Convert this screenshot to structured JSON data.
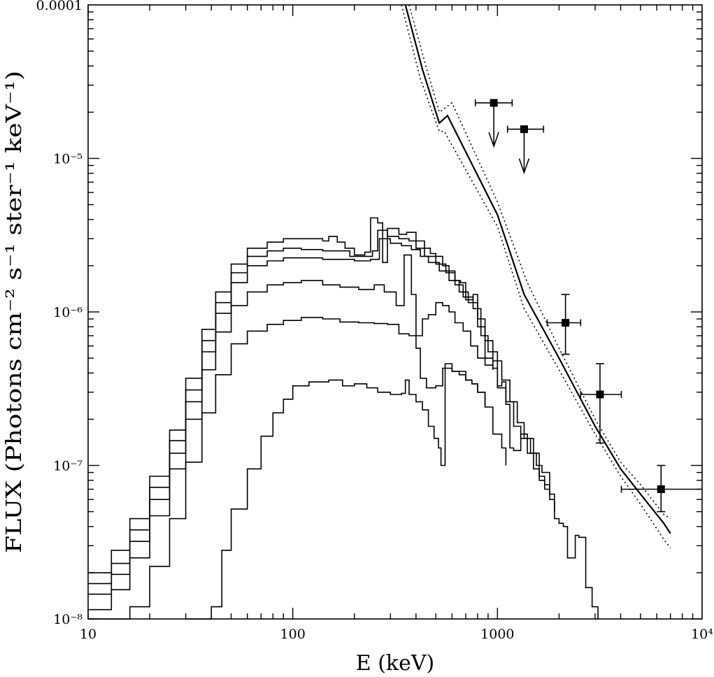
{
  "chart_data": {
    "type": "line",
    "title": "",
    "xlabel": "E (keV)",
    "ylabel": "FLUX (Photons cm⁻² s⁻¹ ster⁻¹ keV⁻¹)",
    "x_scale": "log",
    "y_scale": "log",
    "xlim": [
      10,
      10000
    ],
    "ylim": [
      1e-08,
      0.0001
    ],
    "grid": false,
    "legend": "none",
    "x_ticks": [
      {
        "value": 10,
        "label": "10"
      },
      {
        "value": 100,
        "label": "100"
      },
      {
        "value": 1000,
        "label": "1000"
      },
      {
        "value": 10000,
        "label": "10⁴"
      }
    ],
    "y_ticks": [
      {
        "value": 1e-08,
        "label": "10⁻⁸"
      },
      {
        "value": 1e-07,
        "label": "10⁻⁷"
      },
      {
        "value": 1e-06,
        "label": "10⁻⁶"
      },
      {
        "value": 1e-05,
        "label": "10⁻⁵"
      },
      {
        "value": 0.0001,
        "label": "0.0001"
      }
    ],
    "series": [
      {
        "kind": "histogram",
        "points": [
          [
            10,
            2e-08
          ],
          [
            13,
            2.8e-08
          ],
          [
            16,
            4.5e-08
          ],
          [
            20,
            8.5e-08
          ],
          [
            25,
            1.7e-07
          ],
          [
            30,
            3.7e-07
          ],
          [
            36,
            7.7e-07
          ],
          [
            42,
            1.35e-06
          ],
          [
            50,
            2.05e-06
          ],
          [
            60,
            2.6e-06
          ],
          [
            75,
            2.85e-06
          ],
          [
            90,
            3e-06
          ],
          [
            110,
            3e-06
          ],
          [
            140,
            2.9e-06
          ],
          [
            150,
            3.1e-06
          ],
          [
            165,
            2.85e-06
          ],
          [
            180,
            2.6e-06
          ],
          [
            200,
            2.35e-06
          ],
          [
            225,
            2.45e-06
          ],
          [
            240,
            4.1e-06
          ],
          [
            260,
            3.8e-06
          ],
          [
            275,
            2.1e-06
          ],
          [
            290,
            3.5e-06
          ],
          [
            330,
            3.2e-06
          ],
          [
            360,
            3.3e-06
          ],
          [
            400,
            2.9e-06
          ],
          [
            440,
            2.6e-06
          ],
          [
            470,
            2.4e-06
          ],
          [
            500,
            2.3e-06
          ],
          [
            540,
            2e-06
          ],
          [
            580,
            1.85e-06
          ],
          [
            620,
            1.6e-06
          ],
          [
            660,
            1.55e-06
          ],
          [
            700,
            1.2e-06
          ],
          [
            760,
            1.3e-06
          ],
          [
            800,
            8e-07
          ],
          [
            870,
            5e-07
          ],
          [
            950,
            4.3e-07
          ],
          [
            1000,
            3.3e-07
          ],
          [
            1050,
            3.5e-07
          ],
          [
            1100,
            2.5e-07
          ],
          [
            1150,
            1.3e-07
          ],
          [
            1200,
            1.25e-07
          ],
          [
            1300,
            1.6e-07
          ],
          [
            1400,
            1.5e-07
          ],
          [
            1500,
            1.2e-07
          ],
          [
            1600,
            8e-08
          ],
          [
            1700,
            7.5e-08
          ],
          [
            1800,
            6e-08
          ],
          [
            1900,
            4.5e-08
          ],
          [
            2000,
            4.2e-08
          ],
          [
            2100,
            4e-08
          ],
          [
            2200,
            2.5e-08
          ],
          [
            2400,
            3.5e-08
          ],
          [
            2500,
            3.4e-08
          ],
          [
            2700,
            1.6e-08
          ],
          [
            2900,
            1.2e-08
          ],
          [
            3100,
            1e-08
          ]
        ]
      },
      {
        "kind": "histogram",
        "points": [
          [
            10,
            1.7e-08
          ],
          [
            13,
            2.3e-08
          ],
          [
            16,
            3.8e-08
          ],
          [
            20,
            7.2e-08
          ],
          [
            25,
            1.45e-07
          ],
          [
            30,
            3.1e-07
          ],
          [
            36,
            6.5e-07
          ],
          [
            42,
            1.15e-06
          ],
          [
            50,
            1.8e-06
          ],
          [
            60,
            2.3e-06
          ],
          [
            75,
            2.5e-06
          ],
          [
            90,
            2.6e-06
          ],
          [
            110,
            2.55e-06
          ],
          [
            140,
            2.5e-06
          ],
          [
            165,
            2.5e-06
          ],
          [
            190,
            2.3e-06
          ],
          [
            220,
            2.3e-06
          ],
          [
            245,
            2.5e-06
          ],
          [
            260,
            3.4e-06
          ],
          [
            290,
            3.1e-06
          ],
          [
            330,
            3e-06
          ],
          [
            370,
            2.9e-06
          ],
          [
            400,
            2.6e-06
          ],
          [
            440,
            2.3e-06
          ],
          [
            500,
            2.05e-06
          ],
          [
            560,
            1.8e-06
          ],
          [
            620,
            1.5e-06
          ],
          [
            680,
            1.25e-06
          ],
          [
            760,
            1.05e-06
          ],
          [
            830,
            7e-07
          ],
          [
            900,
            5.5e-07
          ],
          [
            1000,
            3.2e-07
          ],
          [
            1100,
            2.6e-07
          ],
          [
            1200,
            1.8e-07
          ],
          [
            1300,
            1.5e-07
          ],
          [
            1400,
            1.2e-07
          ],
          [
            1500,
            9.5e-08
          ],
          [
            1600,
            8.5e-08
          ],
          [
            1700,
            7e-08
          ],
          [
            1800,
            6.5e-08
          ],
          [
            1900,
            5e-08
          ]
        ]
      },
      {
        "kind": "histogram",
        "points": [
          [
            10,
            1.45e-08
          ],
          [
            13,
            1.95e-08
          ],
          [
            16,
            3.2e-08
          ],
          [
            20,
            6e-08
          ],
          [
            25,
            1.2e-07
          ],
          [
            30,
            2.6e-07
          ],
          [
            36,
            5.5e-07
          ],
          [
            42,
            9.8e-07
          ],
          [
            50,
            1.55e-06
          ],
          [
            60,
            2e-06
          ],
          [
            75,
            2.15e-06
          ],
          [
            90,
            2.25e-06
          ],
          [
            110,
            2.25e-06
          ],
          [
            140,
            2.2e-06
          ],
          [
            165,
            2.2e-06
          ],
          [
            200,
            2.15e-06
          ],
          [
            240,
            2.2e-06
          ],
          [
            265,
            3e-06
          ],
          [
            300,
            2.8e-06
          ],
          [
            340,
            2.7e-06
          ],
          [
            380,
            2.55e-06
          ],
          [
            420,
            2.3e-06
          ],
          [
            460,
            2.1e-06
          ],
          [
            520,
            1.85e-06
          ],
          [
            580,
            1.6e-06
          ],
          [
            650,
            1.35e-06
          ],
          [
            720,
            1.15e-06
          ],
          [
            800,
            9e-07
          ],
          [
            870,
            6.5e-07
          ],
          [
            950,
            4.8e-07
          ],
          [
            1050,
            3.6e-07
          ],
          [
            1150,
            2.6e-07
          ],
          [
            1250,
            1.9e-07
          ],
          [
            1350,
            1.5e-07
          ],
          [
            1450,
            1.2e-07
          ],
          [
            1550,
            1e-07
          ],
          [
            1650,
            9e-08
          ],
          [
            1800,
            7e-08
          ]
        ]
      },
      {
        "kind": "histogram",
        "points": [
          [
            10,
            1.15e-08
          ],
          [
            13,
            1.55e-08
          ],
          [
            16,
            2.5e-08
          ],
          [
            20,
            4.7e-08
          ],
          [
            25,
            9.5e-08
          ],
          [
            30,
            2e-07
          ],
          [
            36,
            4.2e-07
          ],
          [
            42,
            7.4e-07
          ],
          [
            50,
            1.1e-06
          ],
          [
            60,
            1.35e-06
          ],
          [
            75,
            1.5e-06
          ],
          [
            90,
            1.55e-06
          ],
          [
            110,
            1.6e-06
          ],
          [
            140,
            1.5e-06
          ],
          [
            170,
            1.45e-06
          ],
          [
            210,
            1.4e-06
          ],
          [
            250,
            1.5e-06
          ],
          [
            280,
            1.35e-06
          ],
          [
            320,
            1.1e-06
          ],
          [
            350,
            2.35e-06
          ],
          [
            380,
            1.3e-06
          ],
          [
            400,
            7e-07
          ],
          [
            430,
            9e-07
          ],
          [
            460,
            9.6e-07
          ],
          [
            500,
            1.15e-06
          ],
          [
            540,
            1.1e-06
          ],
          [
            580,
            1e-06
          ],
          [
            620,
            8.5e-07
          ],
          [
            680,
            7.5e-07
          ],
          [
            740,
            6e-07
          ],
          [
            800,
            5e-07
          ],
          [
            870,
            4.5e-07
          ],
          [
            950,
            4.2e-07
          ]
        ]
      },
      {
        "kind": "histogram",
        "points": [
          [
            10,
            1e-08
          ],
          [
            16,
            1.2e-08
          ],
          [
            20,
            2.2e-08
          ],
          [
            25,
            4.5e-08
          ],
          [
            30,
            1.05e-07
          ],
          [
            36,
            2.2e-07
          ],
          [
            42,
            3.9e-07
          ],
          [
            50,
            6.2e-07
          ],
          [
            60,
            7.5e-07
          ],
          [
            75,
            8.3e-07
          ],
          [
            90,
            8.8e-07
          ],
          [
            110,
            9.2e-07
          ],
          [
            140,
            9e-07
          ],
          [
            170,
            8.6e-07
          ],
          [
            210,
            8.5e-07
          ],
          [
            250,
            8.4e-07
          ],
          [
            290,
            8.3e-07
          ],
          [
            330,
            7.2e-07
          ],
          [
            370,
            7e-07
          ],
          [
            400,
            5.8e-07
          ],
          [
            420,
            3.7e-07
          ],
          [
            450,
            3.2e-07
          ],
          [
            500,
            3.3e-07
          ],
          [
            540,
            4.3e-07
          ],
          [
            600,
            4.1e-07
          ],
          [
            650,
            3.9e-07
          ],
          [
            700,
            3.6e-07
          ],
          [
            750,
            3.4e-07
          ],
          [
            800,
            3e-07
          ],
          [
            870,
            2.4e-07
          ],
          [
            950,
            1.6e-07
          ],
          [
            1050,
            1.3e-07
          ],
          [
            1100,
            1e-07
          ]
        ]
      },
      {
        "kind": "histogram",
        "points": [
          [
            30,
            1e-08
          ],
          [
            40,
            1.2e-08
          ],
          [
            45,
            2.8e-08
          ],
          [
            50,
            5.2e-08
          ],
          [
            60,
            9.5e-08
          ],
          [
            70,
            1.55e-07
          ],
          [
            80,
            2.2e-07
          ],
          [
            90,
            2.7e-07
          ],
          [
            100,
            3.3e-07
          ],
          [
            120,
            3.5e-07
          ],
          [
            150,
            3.6e-07
          ],
          [
            175,
            3.3e-07
          ],
          [
            200,
            3.4e-07
          ],
          [
            230,
            3.2e-07
          ],
          [
            260,
            3e-07
          ],
          [
            300,
            2.9e-07
          ],
          [
            340,
            2.95e-07
          ],
          [
            355,
            3.6e-07
          ],
          [
            370,
            2.9e-07
          ],
          [
            400,
            2.6e-07
          ],
          [
            430,
            2.3e-07
          ],
          [
            460,
            1.8e-07
          ],
          [
            490,
            1.5e-07
          ],
          [
            515,
            1.3e-07
          ],
          [
            530,
            1e-07
          ],
          [
            555,
            4.6e-07
          ],
          [
            600,
            4.1e-07
          ],
          [
            700,
            3.6e-07
          ],
          [
            750,
            3.4e-07
          ],
          [
            800,
            3e-07
          ],
          [
            870,
            2.4e-07
          ]
        ]
      },
      {
        "kind": "line",
        "style": "solid",
        "points": [
          [
            355,
            0.0001
          ],
          [
            430,
            3.8e-05
          ],
          [
            520,
            1.7e-05
          ],
          [
            570,
            1.9e-05
          ],
          [
            1000,
            4.3e-06
          ],
          [
            1350,
            1.3e-06
          ],
          [
            2000,
            5e-07
          ],
          [
            3000,
            1.8e-07
          ],
          [
            4000,
            9.5e-08
          ],
          [
            5000,
            6.5e-08
          ],
          [
            6500,
            4.2e-08
          ],
          [
            7000,
            3.6e-08
          ]
        ]
      },
      {
        "kind": "line",
        "style": "dotted",
        "points": [
          [
            370,
            0.0001
          ],
          [
            440,
            4.3e-05
          ],
          [
            520,
            2e-05
          ],
          [
            600,
            2.3e-05
          ],
          [
            1000,
            5.2e-06
          ],
          [
            1400,
            1.55e-06
          ],
          [
            2000,
            5.8e-07
          ],
          [
            3000,
            2e-07
          ],
          [
            4000,
            1.05e-07
          ],
          [
            5000,
            7.5e-08
          ],
          [
            6500,
            4.8e-08
          ],
          [
            7000,
            4.5e-08
          ]
        ]
      },
      {
        "kind": "line",
        "style": "dotted",
        "points": [
          [
            340,
            0.0001
          ],
          [
            420,
            3.3e-05
          ],
          [
            520,
            1.5e-05
          ],
          [
            550,
            1.5e-05
          ],
          [
            1000,
            3.6e-06
          ],
          [
            1350,
            1.05e-06
          ],
          [
            2000,
            4.2e-07
          ],
          [
            3000,
            1.6e-07
          ],
          [
            4000,
            8.5e-08
          ],
          [
            5000,
            5.6e-08
          ],
          [
            6500,
            3.3e-08
          ],
          [
            7000,
            2.9e-08
          ]
        ]
      }
    ],
    "measurements": [
      {
        "x": 960,
        "y": 2.3e-05,
        "xerr": [
          780,
          1180
        ],
        "upper_limit": true
      },
      {
        "x": 1350,
        "y": 1.55e-05,
        "xerr": [
          1120,
          1680
        ],
        "upper_limit": true
      },
      {
        "x": 2150,
        "y": 8.5e-07,
        "yerr": [
          5.3e-07,
          1.3e-06
        ],
        "xerr": [
          1750,
          2550
        ]
      },
      {
        "x": 3170,
        "y": 2.9e-07,
        "yerr": [
          1.4e-07,
          4.6e-07
        ],
        "xerr": [
          2550,
          4030
        ]
      },
      {
        "x": 6300,
        "y": 7e-08,
        "yerr": [
          5e-08,
          1e-07
        ],
        "xerr": [
          4030,
          10000
        ]
      }
    ]
  }
}
